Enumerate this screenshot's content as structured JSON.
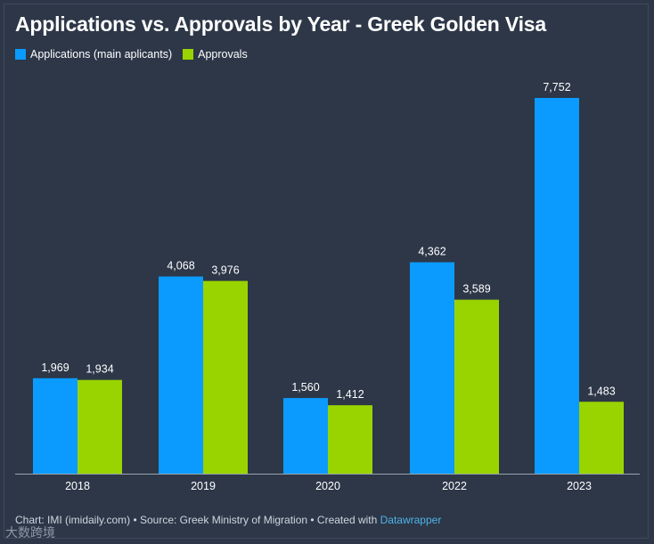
{
  "chart_data": {
    "type": "bar",
    "title": "Applications vs. Approvals by Year - Greek Golden Visa",
    "categories": [
      "2018",
      "2019",
      "2020",
      "2022",
      "2023"
    ],
    "series": [
      {
        "name": "Applications (main aplicants)",
        "color": "#0b9bff",
        "values": [
          1969,
          4068,
          1560,
          4362,
          7752
        ],
        "labels": [
          "1,969",
          "4,068",
          "1,560",
          "4,362",
          "7,752"
        ]
      },
      {
        "name": "Approvals",
        "color": "#99d400",
        "values": [
          1934,
          3976,
          1412,
          3589,
          1483
        ],
        "labels": [
          "1,934",
          "3,976",
          "1,412",
          "3,589",
          "1,483"
        ]
      }
    ],
    "xlabel": "",
    "ylabel": "",
    "ylim": [
      0,
      7752
    ],
    "legend": "top-left",
    "grid": false
  },
  "footer": {
    "text": "Chart: IMI (imidaily.com) • Source: Greek Ministry of Migration • Created with ",
    "link": "Datawrapper"
  },
  "watermark": "大数跨境"
}
